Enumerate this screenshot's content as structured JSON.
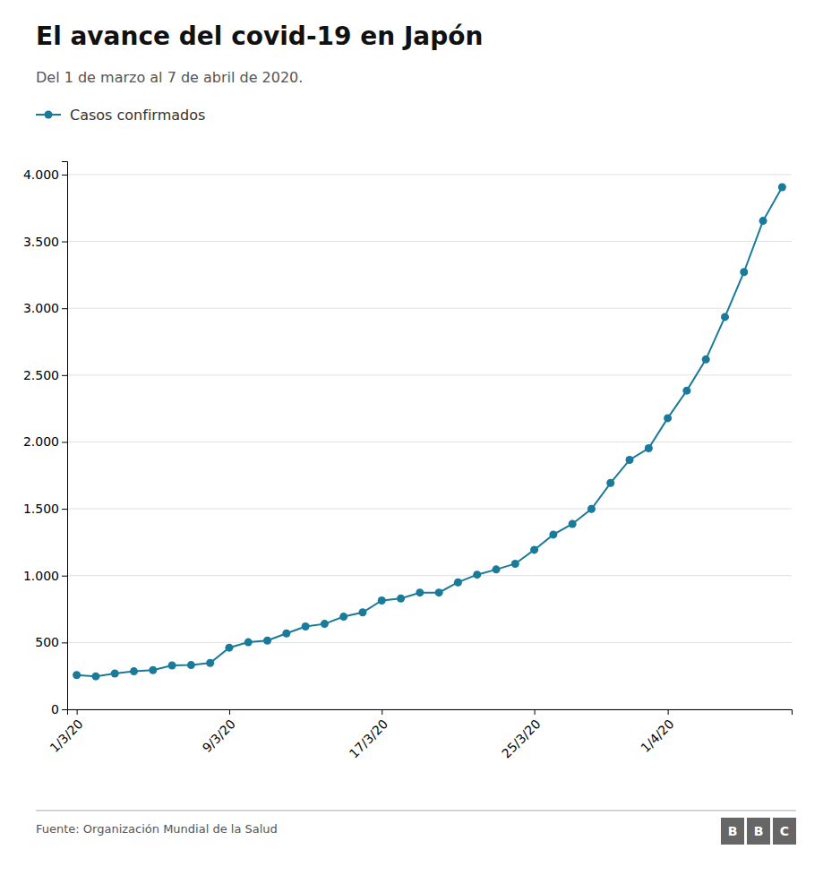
{
  "chart_data": {
    "type": "line",
    "title": "El avance del covid-19 en Japón",
    "subtitle": "Del 1 de marzo al 7 de abril de 2020.",
    "source": "Fuente: Organización Mundial de la Salud",
    "annotations": [
      "BBC"
    ],
    "categories": [
      "1/3/20",
      null,
      null,
      null,
      null,
      null,
      null,
      null,
      "9/3/20",
      null,
      null,
      null,
      null,
      null,
      null,
      null,
      "17/3/20",
      null,
      null,
      null,
      null,
      null,
      null,
      null,
      "25/3/20",
      null,
      null,
      null,
      null,
      null,
      null,
      "1/4/20",
      null,
      null,
      null,
      null,
      null,
      null
    ],
    "series": [
      {
        "name": "Casos confirmados",
        "color": "#1a7a99",
        "marker": "circle",
        "values": [
          256,
          247,
          268,
          284,
          293,
          328,
          331,
          347,
          461,
          502,
          514,
          568,
          620,
          639,
          693,
          725,
          814,
          829,
          873,
          873,
          950,
          1007,
          1046,
          1089,
          1193,
          1307,
          1387,
          1499,
          1693,
          1866,
          1953,
          2178,
          2384,
          2617,
          2935,
          3271,
          3654,
          3906
        ]
      }
    ],
    "ylim": [
      0,
      4100
    ],
    "yticks": [
      0,
      500,
      {
        "value": 1000,
        "label": "1.000"
      },
      {
        "value": 1500,
        "label": "1.500"
      },
      {
        "value": 2000,
        "label": "2.000"
      },
      {
        "value": 2500,
        "label": "2.500"
      },
      {
        "value": 3000,
        "label": "3.000"
      },
      {
        "value": 3500,
        "label": "3.500"
      },
      {
        "value": 4000,
        "label": "4.000"
      }
    ],
    "grid": true,
    "legend": "upper left"
  }
}
